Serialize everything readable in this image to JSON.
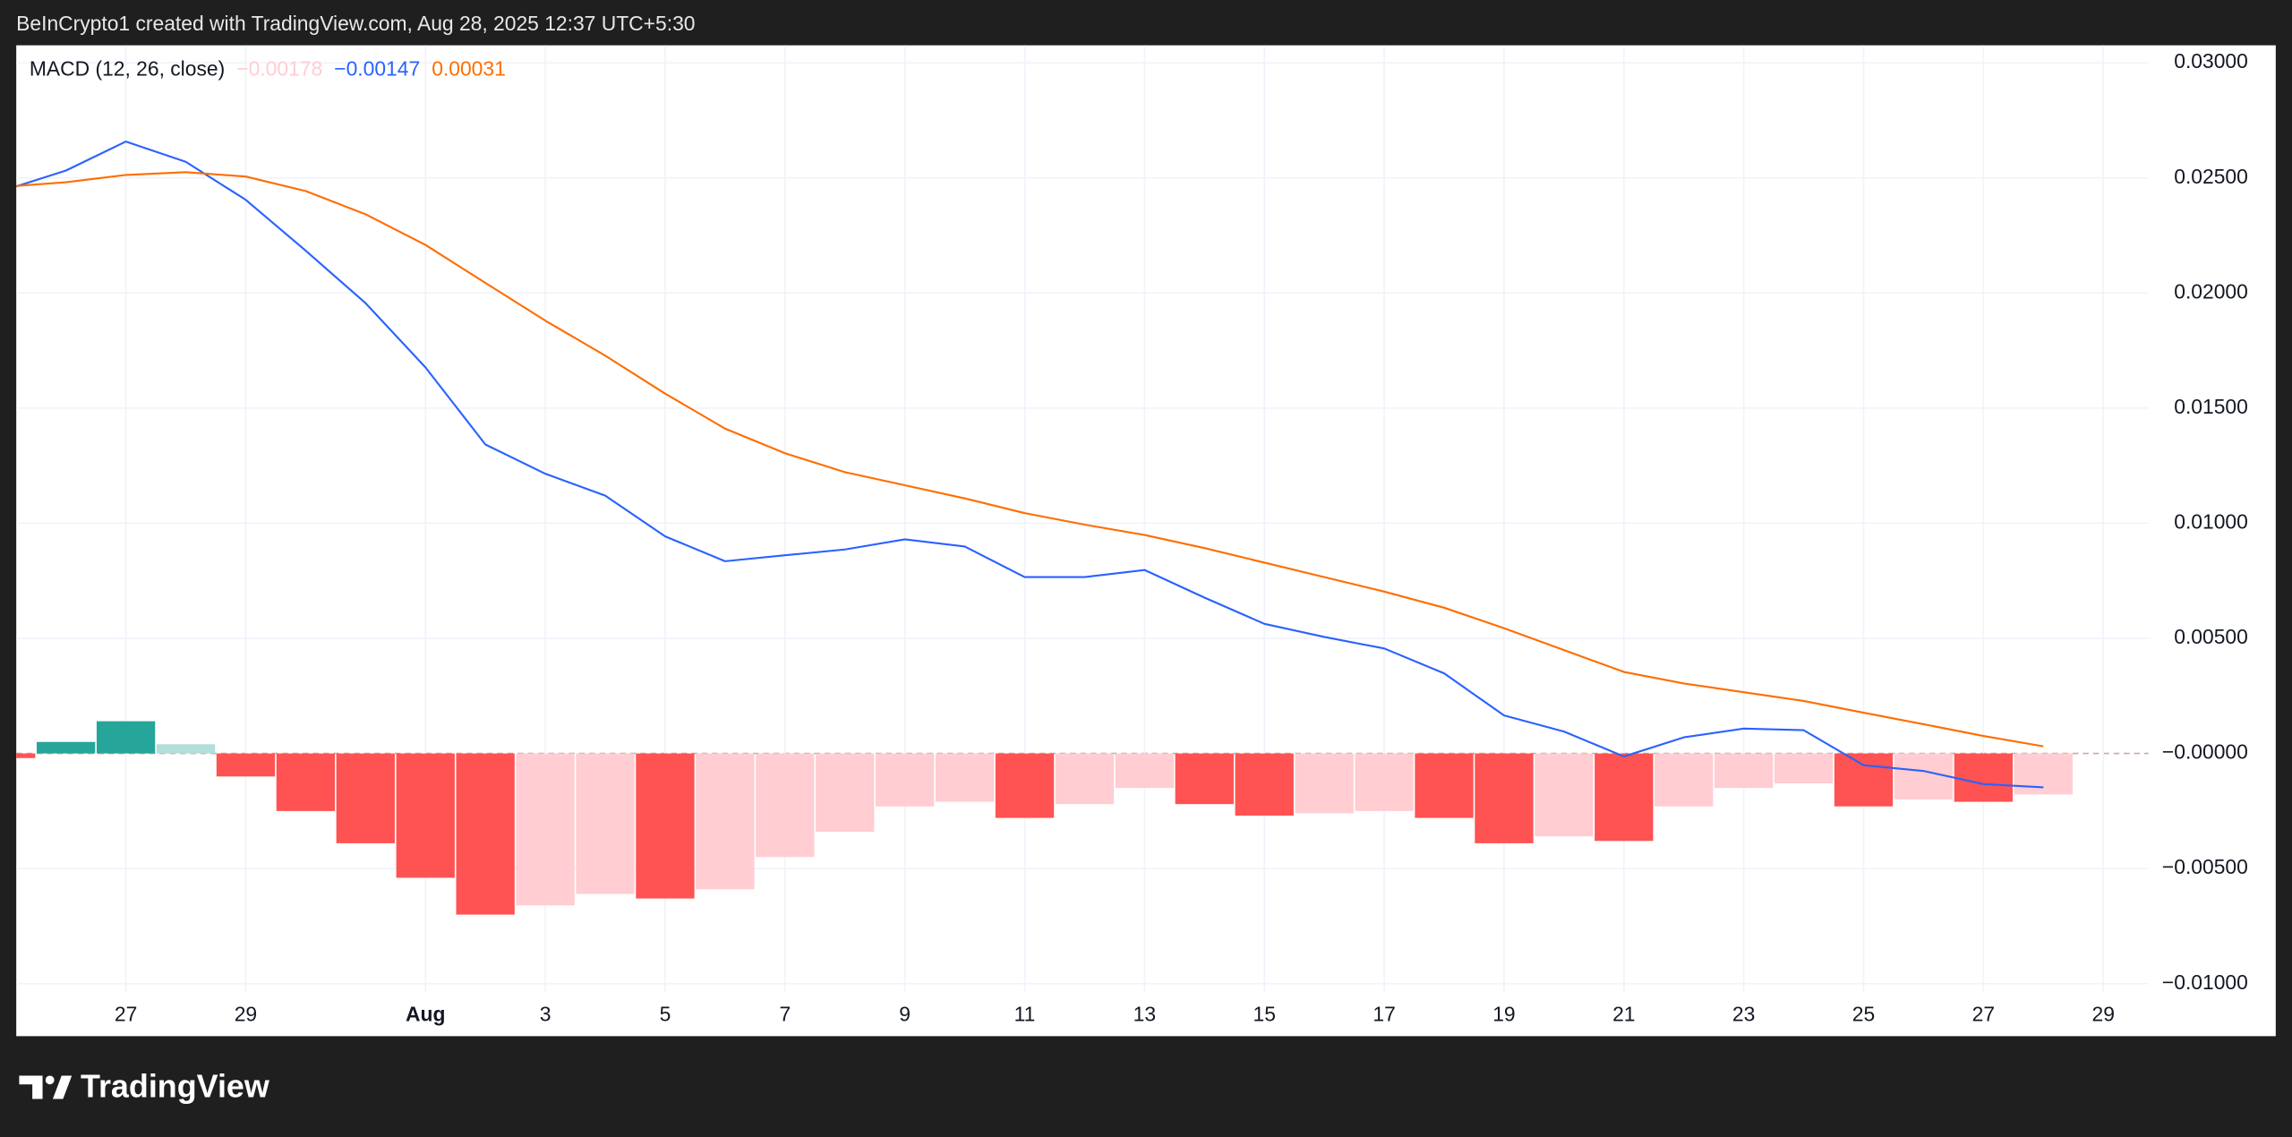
{
  "header": "BeInCrypto1 created with TradingView.com, Aug 28, 2025 12:37 UTC+5:30",
  "footer_brand": "TradingView",
  "chart_data": {
    "type": "combo",
    "indicator": "MACD (12, 26, close)",
    "categories": [
      null,
      null,
      "27",
      null,
      "29",
      null,
      null,
      "Aug",
      null,
      "3",
      null,
      "5",
      null,
      "7",
      null,
      "9",
      null,
      "11",
      null,
      "13",
      null,
      "15",
      null,
      "17",
      null,
      "19",
      null,
      "21",
      null,
      "23",
      null,
      "25",
      null,
      "27",
      null,
      "29"
    ],
    "ylim": [
      -0.01228,
      0.03076
    ],
    "yticks": [
      {
        "value": 0.03,
        "label": "0.03000"
      },
      {
        "value": 0.025,
        "label": "0.02500"
      },
      {
        "value": 0.02,
        "label": "0.02000"
      },
      {
        "value": 0.015,
        "label": "0.01500"
      },
      {
        "value": 0.01,
        "label": "0.01000"
      },
      {
        "value": 0.005,
        "label": "0.00500"
      },
      {
        "value": 0,
        "label": "−0.00000"
      },
      {
        "value": -0.005,
        "label": "−0.00500"
      },
      {
        "value": -0.01,
        "label": "−0.01000"
      }
    ],
    "grid": true,
    "series": [
      {
        "type": "bar",
        "color": "#ffcdd2",
        "colors": [
          "#ff5252",
          "#26a69a",
          "#26a69a",
          "#b2dfdb",
          "#ff5252",
          "#ff5252",
          "#ff5252",
          "#ff5252",
          "#ff5252",
          "#ffcdd2",
          "#ffcdd2",
          "#ff5252",
          "#ffcdd2",
          "#ffcdd2",
          "#ffcdd2",
          "#ffcdd2",
          "#ffcdd2",
          "#ff5252",
          "#ffcdd2",
          "#ffcdd2",
          "#ff5252",
          "#ff5252",
          "#ffcdd2",
          "#ffcdd2",
          "#ff5252",
          "#ff5252",
          "#ffcdd2",
          "#ff5252",
          "#ffcdd2",
          "#ffcdd2",
          "#ffcdd2",
          "#ff5252",
          "#ffcdd2",
          "#ff5252",
          "#ffcdd2",
          null
        ],
        "values": [
          -0.0002,
          0.0005,
          0.0014,
          0.0004,
          -0.001,
          -0.0025,
          -0.0039,
          -0.0054,
          -0.007,
          -0.0066,
          -0.0061,
          -0.0063,
          -0.0059,
          -0.0045,
          -0.0034,
          -0.0023,
          -0.0021,
          -0.0028,
          -0.0022,
          -0.0015,
          -0.0022,
          -0.0027,
          -0.0026,
          -0.0025,
          -0.0028,
          -0.0039,
          -0.0036,
          -0.0038,
          -0.0023,
          -0.0015,
          -0.0013,
          -0.0023,
          -0.002,
          -0.0021,
          -0.00178,
          null
        ],
        "value_labels": [
          null,
          null,
          null,
          null,
          null,
          null,
          null,
          null,
          null,
          null,
          null,
          null,
          null,
          null,
          null,
          null,
          null,
          null,
          null,
          null,
          null,
          null,
          null,
          null,
          null,
          null,
          null,
          null,
          null,
          null,
          null,
          null,
          null,
          null,
          "−0.00178",
          null
        ]
      },
      {
        "type": "line",
        "color": "#2962ff",
        "values": [
          0.02449,
          0.02532,
          0.02658,
          0.0257,
          0.02405,
          0.02184,
          0.01956,
          0.01677,
          0.01342,
          0.01215,
          0.0112,
          0.00943,
          0.00835,
          0.00861,
          0.00886,
          0.0093,
          0.00899,
          0.00766,
          0.00766,
          0.00797,
          0.00677,
          0.00563,
          0.00506,
          0.00456,
          0.00348,
          0.00165,
          0.00095,
          -0.00013,
          0.0007,
          0.00108,
          0.00101,
          -0.00051,
          -0.00076,
          -0.00133,
          -0.00147,
          null
        ],
        "value_labels": [
          null,
          null,
          null,
          null,
          null,
          null,
          null,
          null,
          null,
          null,
          null,
          null,
          null,
          null,
          null,
          null,
          null,
          null,
          null,
          null,
          null,
          null,
          null,
          null,
          null,
          null,
          null,
          null,
          null,
          null,
          null,
          null,
          null,
          null,
          "−0.00147",
          null
        ]
      },
      {
        "type": "line",
        "color": "#ff6d00",
        "values": [
          0.02462,
          0.02481,
          0.02513,
          0.02525,
          0.02506,
          0.02443,
          0.02342,
          0.02209,
          0.02044,
          0.0188,
          0.01728,
          0.01563,
          0.01411,
          0.01304,
          0.01222,
          0.01165,
          0.01108,
          0.01044,
          0.00994,
          0.00949,
          0.00892,
          0.00829,
          0.00766,
          0.00703,
          0.00633,
          0.00544,
          0.00449,
          0.00354,
          0.00304,
          0.00266,
          0.00228,
          0.00177,
          0.00127,
          0.00076,
          0.00031,
          null
        ],
        "value_labels": [
          null,
          null,
          null,
          null,
          null,
          null,
          null,
          null,
          null,
          null,
          null,
          null,
          null,
          null,
          null,
          null,
          null,
          null,
          null,
          null,
          null,
          null,
          null,
          null,
          null,
          null,
          null,
          null,
          null,
          null,
          null,
          null,
          null,
          null,
          "0.00031",
          null
        ]
      }
    ]
  }
}
